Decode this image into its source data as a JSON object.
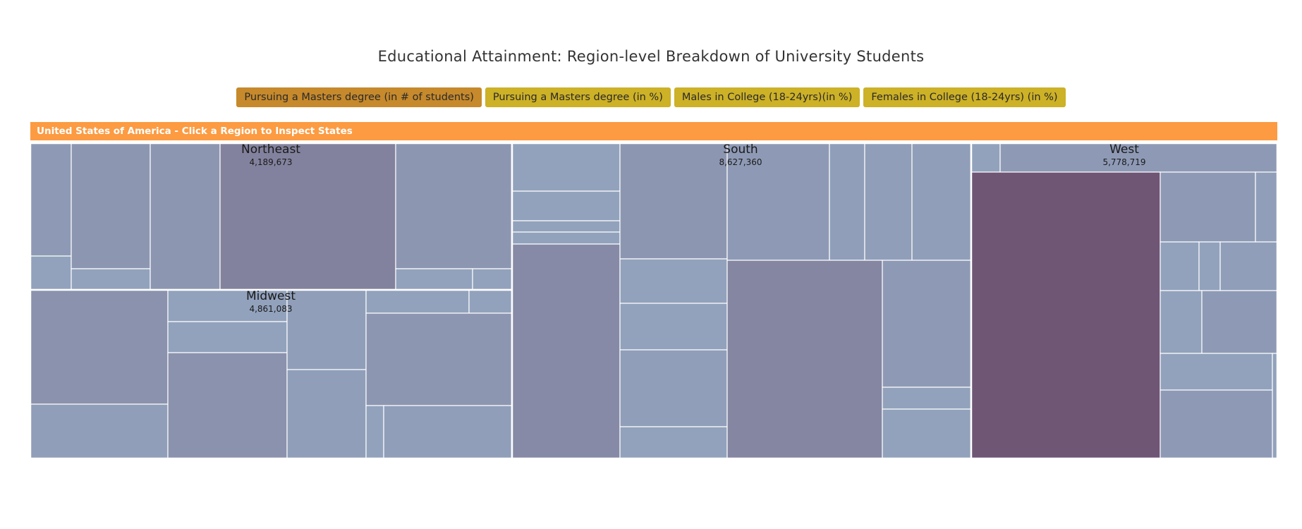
{
  "title": "Educational Attainment: Region-level Breakdown of University Students",
  "buttons": [
    "Pursuing a Masters degree (in # of students)",
    "Pursuing a Masters degree (in %)",
    "Males in College (18-24yrs)(in %)",
    "Females in College (18-24yrs) (in %)"
  ],
  "active_button_index": 0,
  "breadcrumb": "United States of America - Click a Region to Inspect States",
  "colors": {
    "button": "#cdb126",
    "button_active": "#c6892b",
    "breadcrumb": "#fc9b42",
    "tile_low": "#94a6c0",
    "tile_high": "#6f5675",
    "tile_border": "#ffffff"
  },
  "chart_data": {
    "type": "treemap",
    "title": "Educational Attainment: Region-level Breakdown of University Students",
    "regions": [
      {
        "name": "Northeast",
        "value": 4189673,
        "value_label": "4,189,673"
      },
      {
        "name": "Midwest",
        "value": 4861083,
        "value_label": "4,861,083"
      },
      {
        "name": "South",
        "value": 8627360,
        "value_label": "8,627,360"
      },
      {
        "name": "West",
        "value": 5778719,
        "value_label": "5,778,719"
      }
    ]
  }
}
